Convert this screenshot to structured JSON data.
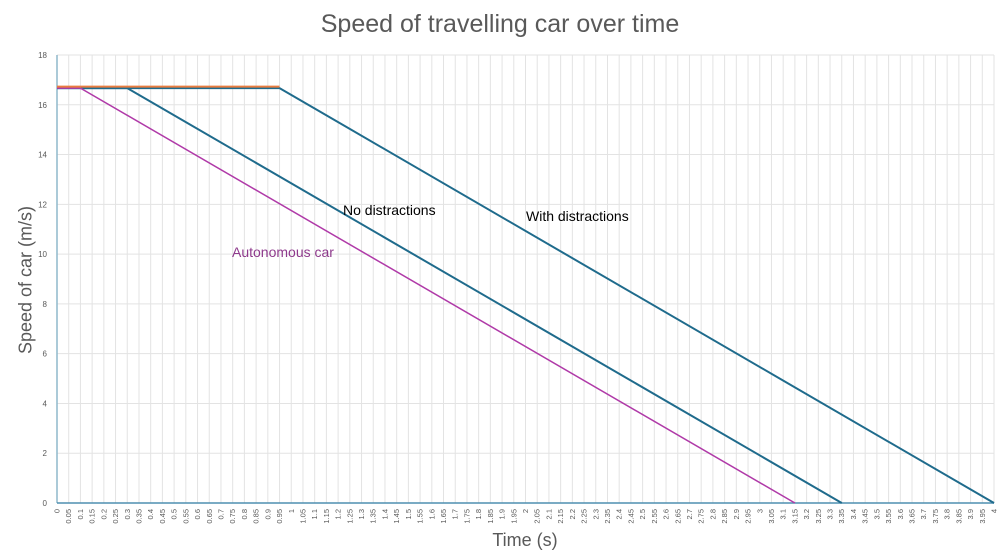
{
  "chart_data": {
    "type": "line",
    "title": "Speed of travelling car over time",
    "xlabel": "Time (s)",
    "ylabel": "Speed of car (m/s)",
    "x_categories_start": 0,
    "x_categories_end": 4,
    "x_categories_step": 0.05,
    "ylim": [
      0,
      18
    ],
    "yticks": [
      0,
      2,
      4,
      6,
      8,
      10,
      12,
      14,
      16,
      18
    ],
    "grid": true,
    "legend": "none",
    "series": [
      {
        "name": "",
        "color": "#e97c3f",
        "points": [
          [
            0,
            16.67
          ],
          [
            0.95,
            16.67
          ]
        ]
      },
      {
        "name": "Autonomous car",
        "color": "#b03aa8",
        "points": [
          [
            0,
            16.67
          ],
          [
            0.1,
            16.67
          ],
          [
            3.15,
            0
          ]
        ]
      },
      {
        "name": "No distractions",
        "color": "#1f6b8c",
        "points": [
          [
            0,
            16.67
          ],
          [
            0.3,
            16.67
          ],
          [
            3.35,
            0
          ]
        ]
      },
      {
        "name": "With distractions",
        "color": "#1f6b8c",
        "points": [
          [
            0,
            16.67
          ],
          [
            0.95,
            16.67
          ],
          [
            4,
            0
          ]
        ]
      }
    ],
    "annotations": {
      "autonomous": {
        "text": "Autonomous car",
        "color": "#8e3a8c"
      },
      "no_distractions": {
        "text": "No distractions",
        "color": "#000000"
      },
      "with_distractions": {
        "text": "With distractions",
        "color": "#000000"
      }
    }
  }
}
